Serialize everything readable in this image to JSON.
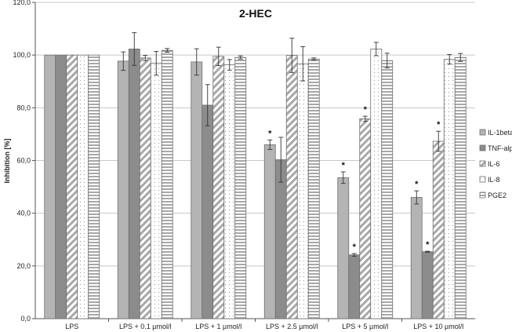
{
  "chart_data": {
    "type": "bar",
    "title": "2-HEC",
    "ylabel": "Inhibition [%]",
    "ylim": [
      0,
      120
    ],
    "yticks": [
      "0,0",
      "20,0",
      "40,0",
      "60,0",
      "80,0",
      "100,0",
      "120,0"
    ],
    "ytick_values": [
      0,
      20,
      40,
      60,
      80,
      100,
      120
    ],
    "grid": true,
    "legend_position": "right",
    "categories": [
      "LPS",
      "LPS + 0.1 µmol/l",
      "LPS + 1 µmol/l",
      "LPS + 2.5 µmol/l",
      "LPS + 5 µmol/l",
      "LPS + 10 µmol/l"
    ],
    "significance_marker": "*",
    "series": [
      {
        "name": "IL-1beta",
        "color": "#b4b4b4",
        "pattern": "solid-light",
        "values": [
          100,
          97.7,
          97.4,
          66.0,
          53.5,
          46.0
        ],
        "errors": [
          0,
          3.5,
          5.0,
          1.8,
          2.2,
          2.5
        ],
        "significant": [
          false,
          false,
          false,
          true,
          true,
          true
        ]
      },
      {
        "name": "TNF-alpha",
        "color": "#8c8c8c",
        "pattern": "solid-dark",
        "values": [
          100,
          102.3,
          81.0,
          60.3,
          24.2,
          25.4
        ],
        "errors": [
          0,
          6.2,
          7.8,
          8.5,
          0.5,
          0.2
        ],
        "significant": [
          false,
          false,
          false,
          false,
          true,
          true
        ]
      },
      {
        "name": "IL-6",
        "color": "#d0d0d0",
        "pattern": "diagonal",
        "values": [
          100,
          98.9,
          99.5,
          99.9,
          75.8,
          67.3
        ],
        "errors": [
          0,
          1.0,
          3.5,
          6.5,
          1.0,
          3.8
        ],
        "significant": [
          false,
          false,
          false,
          false,
          true,
          true
        ]
      },
      {
        "name": "IL-8",
        "color": "#f2f2f2",
        "pattern": "dots",
        "values": [
          100,
          96.9,
          96.3,
          96.7,
          102.3,
          98.4
        ],
        "errors": [
          0,
          4.5,
          2.0,
          6.5,
          2.5,
          1.8
        ],
        "significant": [
          false,
          false,
          false,
          false,
          false,
          false
        ]
      },
      {
        "name": "PGE2",
        "color": "#cfcfcf",
        "pattern": "horizontal",
        "values": [
          100,
          101.8,
          99.1,
          98.5,
          97.9,
          99.1
        ],
        "errors": [
          0,
          0.7,
          0.6,
          0.4,
          2.8,
          1.5
        ],
        "significant": [
          false,
          false,
          false,
          false,
          false,
          false
        ]
      }
    ]
  }
}
